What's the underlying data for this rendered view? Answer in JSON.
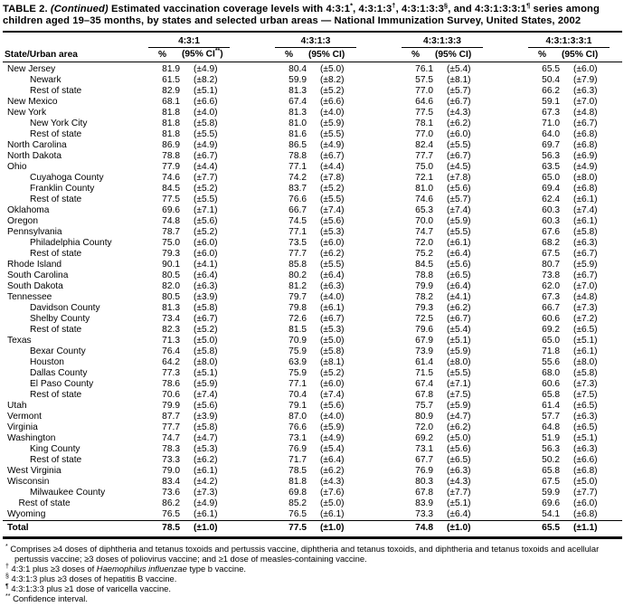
{
  "title": {
    "segments": [
      {
        "t": "TABLE 2. "
      },
      {
        "t": "(Continued)",
        "i": true
      },
      {
        "t": " Estimated vaccination coverage levels with 4:3:1"
      },
      {
        "t": "*",
        "sup": true
      },
      {
        "t": ", 4:3:1:3"
      },
      {
        "t": "†",
        "sup": true
      },
      {
        "t": ", 4:3:1:3:3"
      },
      {
        "t": "§",
        "sup": true
      },
      {
        "t": ", and 4:3:1:3:3:1"
      },
      {
        "t": "¶",
        "sup": true
      },
      {
        "t": " series among children aged 19–35 months, by states and selected urban areas — National Immunization Survey, United States, 2002"
      }
    ]
  },
  "table": {
    "area_header": "State/Urban area",
    "groups": [
      {
        "label": "4:3:1",
        "pct": "%",
        "ci_pre": "(95% CI",
        "ci_sup": "**",
        "ci_post": ")"
      },
      {
        "label": "4:3:1:3",
        "pct": "%",
        "ci_pre": "(95% CI",
        "ci_sup": "",
        "ci_post": ")"
      },
      {
        "label": "4:3:1:3:3",
        "pct": "%",
        "ci_pre": "(95% CI",
        "ci_sup": "",
        "ci_post": ")"
      },
      {
        "label": "4:3:1:3:3:1",
        "pct": "%",
        "ci_pre": "(95% CI",
        "ci_sup": "",
        "ci_post": ")"
      }
    ],
    "rows": [
      {
        "area": "New Jersey",
        "indent": 0,
        "values": [
          "81.9",
          "(±4.9)",
          "80.4",
          "(±5.0)",
          "76.1",
          "(±5.4)",
          "65.5",
          "(±6.0)"
        ]
      },
      {
        "area": "Newark",
        "indent": 1,
        "values": [
          "61.5",
          "(±8.2)",
          "59.9",
          "(±8.2)",
          "57.5",
          "(±8.1)",
          "50.4",
          "(±7.9)"
        ]
      },
      {
        "area": "Rest of state",
        "indent": 1,
        "values": [
          "82.9",
          "(±5.1)",
          "81.3",
          "(±5.2)",
          "77.0",
          "(±5.7)",
          "66.2",
          "(±6.3)"
        ]
      },
      {
        "area": "New Mexico",
        "indent": 0,
        "values": [
          "68.1",
          "(±6.6)",
          "67.4",
          "(±6.6)",
          "64.6",
          "(±6.7)",
          "59.1",
          "(±7.0)"
        ]
      },
      {
        "area": "New York",
        "indent": 0,
        "values": [
          "81.8",
          "(±4.0)",
          "81.3",
          "(±4.0)",
          "77.5",
          "(±4.3)",
          "67.3",
          "(±4.8)"
        ]
      },
      {
        "area": "New York City",
        "indent": 1,
        "values": [
          "81.8",
          "(±5.8)",
          "81.0",
          "(±5.9)",
          "78.1",
          "(±6.2)",
          "71.0",
          "(±6.7)"
        ]
      },
      {
        "area": "Rest of state",
        "indent": 1,
        "values": [
          "81.8",
          "(±5.5)",
          "81.6",
          "(±5.5)",
          "77.0",
          "(±6.0)",
          "64.0",
          "(±6.8)"
        ]
      },
      {
        "area": "North Carolina",
        "indent": 0,
        "values": [
          "86.9",
          "(±4.9)",
          "86.5",
          "(±4.9)",
          "82.4",
          "(±5.5)",
          "69.7",
          "(±6.8)"
        ]
      },
      {
        "area": "North Dakota",
        "indent": 0,
        "values": [
          "78.8",
          "(±6.7)",
          "78.8",
          "(±6.7)",
          "77.7",
          "(±6.7)",
          "56.3",
          "(±6.9)"
        ]
      },
      {
        "area": "Ohio",
        "indent": 0,
        "values": [
          "77.9",
          "(±4.4)",
          "77.1",
          "(±4.4)",
          "75.0",
          "(±4.5)",
          "63.5",
          "(±4.9)"
        ]
      },
      {
        "area": "Cuyahoga County",
        "indent": 1,
        "values": [
          "74.6",
          "(±7.7)",
          "74.2",
          "(±7.8)",
          "72.1",
          "(±7.8)",
          "65.0",
          "(±8.0)"
        ]
      },
      {
        "area": "Franklin County",
        "indent": 1,
        "values": [
          "84.5",
          "(±5.2)",
          "83.7",
          "(±5.2)",
          "81.0",
          "(±5.6)",
          "69.4",
          "(±6.8)"
        ]
      },
      {
        "area": "Rest of state",
        "indent": 1,
        "values": [
          "77.5",
          "(±5.5)",
          "76.6",
          "(±5.5)",
          "74.6",
          "(±5.7)",
          "62.4",
          "(±6.1)"
        ]
      },
      {
        "area": "Oklahoma",
        "indent": 0,
        "values": [
          "69.6",
          "(±7.1)",
          "66.7",
          "(±7.4)",
          "65.3",
          "(±7.4)",
          "60.3",
          "(±7.4)"
        ]
      },
      {
        "area": "Oregon",
        "indent": 0,
        "values": [
          "74.8",
          "(±5.6)",
          "74.5",
          "(±5.6)",
          "70.0",
          "(±5.9)",
          "60.3",
          "(±6.1)"
        ]
      },
      {
        "area": "Pennsylvania",
        "indent": 0,
        "values": [
          "78.7",
          "(±5.2)",
          "77.1",
          "(±5.3)",
          "74.7",
          "(±5.5)",
          "67.6",
          "(±5.8)"
        ]
      },
      {
        "area": "Philadelphia County",
        "indent": 1,
        "values": [
          "75.0",
          "(±6.0)",
          "73.5",
          "(±6.0)",
          "72.0",
          "(±6.1)",
          "68.2",
          "(±6.3)"
        ]
      },
      {
        "area": "Rest of state",
        "indent": 1,
        "values": [
          "79.3",
          "(±6.0)",
          "77.7",
          "(±6.2)",
          "75.2",
          "(±6.4)",
          "67.5",
          "(±6.7)"
        ]
      },
      {
        "area": "Rhode Island",
        "indent": 0,
        "values": [
          "90.1",
          "(±4.1)",
          "85.8",
          "(±5.5)",
          "84.5",
          "(±5.6)",
          "80.7",
          "(±5.9)"
        ]
      },
      {
        "area": "South Carolina",
        "indent": 0,
        "values": [
          "80.5",
          "(±6.4)",
          "80.2",
          "(±6.4)",
          "78.8",
          "(±6.5)",
          "73.8",
          "(±6.7)"
        ]
      },
      {
        "area": "South Dakota",
        "indent": 0,
        "values": [
          "82.0",
          "(±6.3)",
          "81.2",
          "(±6.3)",
          "79.9",
          "(±6.4)",
          "62.0",
          "(±7.0)"
        ]
      },
      {
        "area": "Tennessee",
        "indent": 0,
        "values": [
          "80.5",
          "(±3.9)",
          "79.7",
          "(±4.0)",
          "78.2",
          "(±4.1)",
          "67.3",
          "(±4.8)"
        ]
      },
      {
        "area": "Davidson County",
        "indent": 1,
        "values": [
          "81.3",
          "(±5.8)",
          "79.8",
          "(±6.1)",
          "79.3",
          "(±6.2)",
          "66.7",
          "(±7.3)"
        ]
      },
      {
        "area": "Shelby County",
        "indent": 1,
        "values": [
          "73.4",
          "(±6.7)",
          "72.6",
          "(±6.7)",
          "72.5",
          "(±6.7)",
          "60.6",
          "(±7.2)"
        ]
      },
      {
        "area": "Rest of state",
        "indent": 1,
        "values": [
          "82.3",
          "(±5.2)",
          "81.5",
          "(±5.3)",
          "79.6",
          "(±5.4)",
          "69.2",
          "(±6.5)"
        ]
      },
      {
        "area": "Texas",
        "indent": 0,
        "values": [
          "71.3",
          "(±5.0)",
          "70.9",
          "(±5.0)",
          "67.9",
          "(±5.1)",
          "65.0",
          "(±5.1)"
        ]
      },
      {
        "area": "Bexar County",
        "indent": 1,
        "values": [
          "76.4",
          "(±5.8)",
          "75.9",
          "(±5.8)",
          "73.9",
          "(±5.9)",
          "71.8",
          "(±6.1)"
        ]
      },
      {
        "area": "Houston",
        "indent": 1,
        "values": [
          "64.2",
          "(±8.0)",
          "63.9",
          "(±8.1)",
          "61.4",
          "(±8.0)",
          "55.6",
          "(±8.0)"
        ]
      },
      {
        "area": "Dallas County",
        "indent": 1,
        "values": [
          "77.3",
          "(±5.1)",
          "75.9",
          "(±5.2)",
          "71.5",
          "(±5.5)",
          "68.0",
          "(±5.8)"
        ]
      },
      {
        "area": "El Paso County",
        "indent": 1,
        "values": [
          "78.6",
          "(±5.9)",
          "77.1",
          "(±6.0)",
          "67.4",
          "(±7.1)",
          "60.6",
          "(±7.3)"
        ]
      },
      {
        "area": "Rest of state",
        "indent": 1,
        "values": [
          "70.6",
          "(±7.4)",
          "70.4",
          "(±7.4)",
          "67.8",
          "(±7.5)",
          "65.8",
          "(±7.5)"
        ]
      },
      {
        "area": "Utah",
        "indent": 0,
        "values": [
          "79.9",
          "(±5.6)",
          "79.1",
          "(±5.6)",
          "75.7",
          "(±5.9)",
          "61.4",
          "(±6.5)"
        ]
      },
      {
        "area": "Vermont",
        "indent": 0,
        "values": [
          "87.7",
          "(±3.9)",
          "87.0",
          "(±4.0)",
          "80.9",
          "(±4.7)",
          "57.7",
          "(±6.3)"
        ]
      },
      {
        "area": "Virginia",
        "indent": 0,
        "values": [
          "77.7",
          "(±5.8)",
          "76.6",
          "(±5.9)",
          "72.0",
          "(±6.2)",
          "64.8",
          "(±6.5)"
        ]
      },
      {
        "area": "Washington",
        "indent": 0,
        "values": [
          "74.7",
          "(±4.7)",
          "73.1",
          "(±4.9)",
          "69.2",
          "(±5.0)",
          "51.9",
          "(±5.1)"
        ]
      },
      {
        "area": "King County",
        "indent": 1,
        "values": [
          "78.3",
          "(±5.3)",
          "76.9",
          "(±5.4)",
          "73.1",
          "(±5.6)",
          "56.3",
          "(±6.3)"
        ]
      },
      {
        "area": "Rest of state",
        "indent": 1,
        "values": [
          "73.3",
          "(±6.2)",
          "71.7",
          "(±6.4)",
          "67.7",
          "(±6.5)",
          "50.2",
          "(±6.6)"
        ]
      },
      {
        "area": "West Virginia",
        "indent": 0,
        "values": [
          "79.0",
          "(±6.1)",
          "78.5",
          "(±6.2)",
          "76.9",
          "(±6.3)",
          "65.8",
          "(±6.8)"
        ]
      },
      {
        "area": "Wisconsin",
        "indent": 0,
        "values": [
          "83.4",
          "(±4.2)",
          "81.8",
          "(±4.3)",
          "80.3",
          "(±4.3)",
          "67.5",
          "(±5.0)"
        ]
      },
      {
        "area": "Milwaukee County",
        "indent": 1,
        "values": [
          "73.6",
          "(±7.3)",
          "69.8",
          "(±7.6)",
          "67.8",
          "(±7.7)",
          "59.9",
          "(±7.7)"
        ]
      },
      {
        "area": "Rest of state",
        "indent": 0.5,
        "values": [
          "86.2",
          "(±4.9)",
          "85.2",
          "(±5.0)",
          "83.9",
          "(±5.1)",
          "69.6",
          "(±6.0)"
        ]
      },
      {
        "area": "Wyoming",
        "indent": 0,
        "values": [
          "76.5",
          "(±6.1)",
          "76.5",
          "(±6.1)",
          "73.3",
          "(±6.4)",
          "54.1",
          "(±6.8)"
        ]
      },
      {
        "area": "Total",
        "indent": 0,
        "total": true,
        "values": [
          "78.5",
          "(±1.0)",
          "77.5",
          "(±1.0)",
          "74.8",
          "(±1.0)",
          "65.5",
          "(±1.1)"
        ]
      }
    ]
  },
  "footnotes": [
    {
      "marker": "*",
      "segments": [
        {
          "t": "Comprises ≥4 doses of diphtheria and tetanus toxoids and pertussis vaccine, diphtheria and tetanus toxoids, and diphtheria and tetanus toxoids and acellular pertussis vaccine; ≥3 doses of poliovirus vaccine; and ≥1 dose of measles-containing vaccine."
        }
      ]
    },
    {
      "marker": "†",
      "segments": [
        {
          "t": "4:3:1 plus ≥3 doses of "
        },
        {
          "t": "Haemophilus influenzae",
          "i": true
        },
        {
          "t": " type b vaccine."
        }
      ]
    },
    {
      "marker": "§",
      "segments": [
        {
          "t": "4:3:1:3 plus ≥3 doses of hepatitis B vaccine."
        }
      ]
    },
    {
      "marker": "¶",
      "segments": [
        {
          "t": "4:3:1:3:3 plus ≥1 dose of varicella vaccine."
        }
      ]
    },
    {
      "marker": "**",
      "segments": [
        {
          "t": "Confidence interval."
        }
      ]
    }
  ]
}
